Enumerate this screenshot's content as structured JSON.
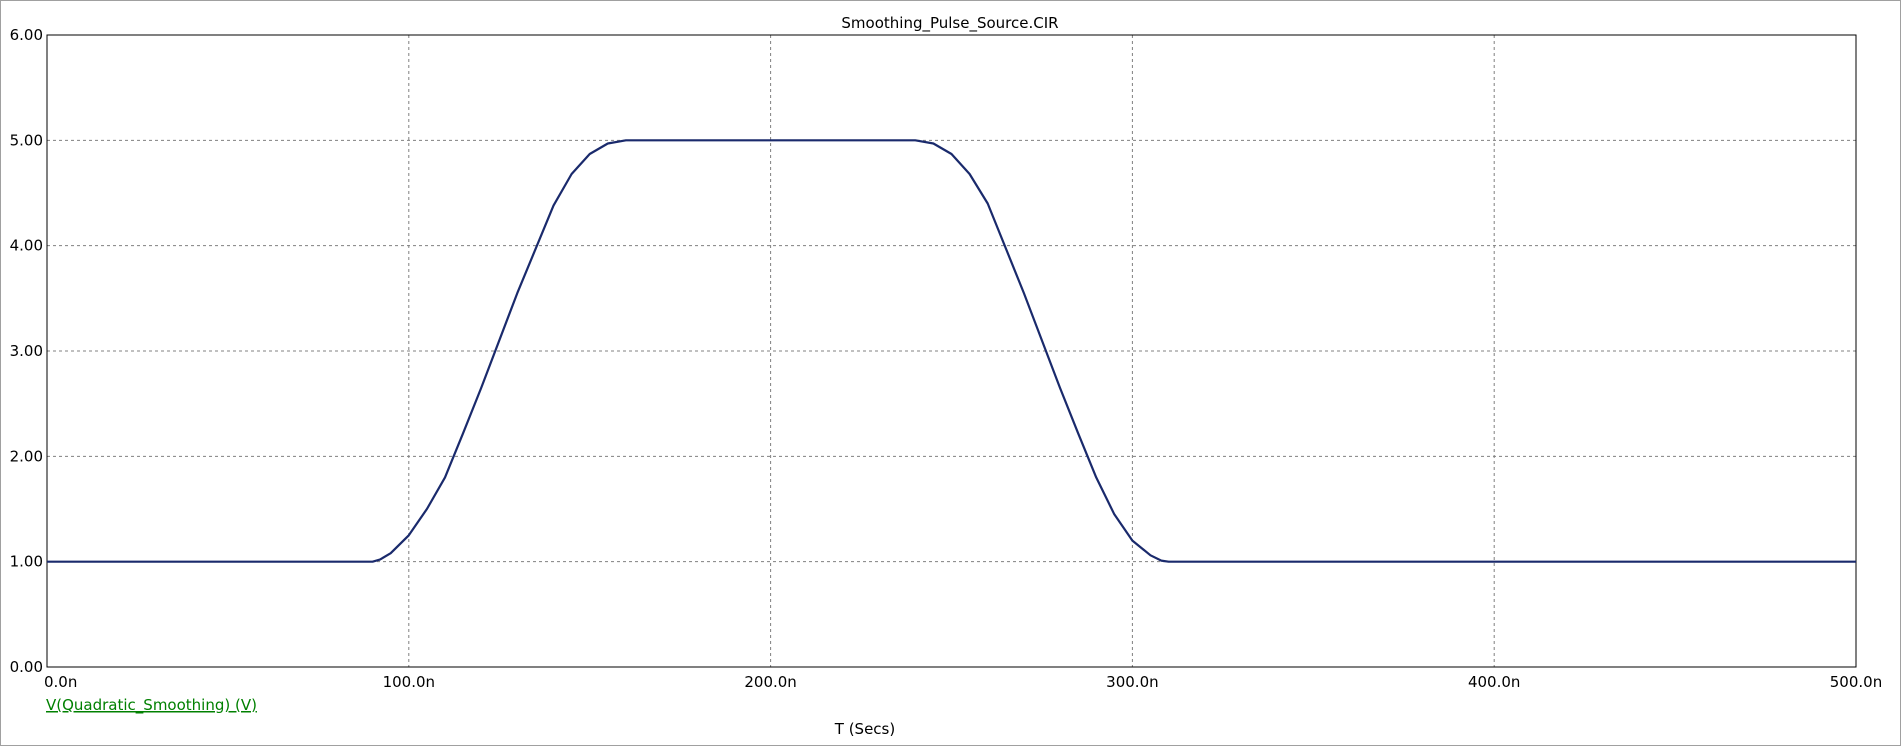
{
  "chart_data": {
    "type": "line",
    "title": "Smoothing_Pulse_Source.CIR",
    "xlabel": "T (Secs)",
    "ylabel": "",
    "xlim": [
      0,
      500
    ],
    "ylim": [
      0,
      6
    ],
    "x_unit": "ns",
    "x_ticks": [
      0,
      100,
      200,
      300,
      400,
      500
    ],
    "x_tick_labels": [
      "0.0n",
      "100.0n",
      "200.0n",
      "300.0n",
      "400.0n",
      "500.0n"
    ],
    "y_ticks": [
      0,
      1,
      2,
      3,
      4,
      5,
      6
    ],
    "y_tick_labels": [
      "0.00",
      "1.00",
      "2.00",
      "3.00",
      "4.00",
      "5.00",
      "6.00"
    ],
    "grid": true,
    "legend_position": "bottom-left",
    "series": [
      {
        "name": "V(Quadratic_Smoothing) (V)",
        "color": "#1a2a6c",
        "legend_color": "#008000",
        "x": [
          0,
          90,
          92,
          95,
          100,
          105,
          110,
          115,
          120,
          130,
          140,
          145,
          150,
          155,
          160,
          200,
          240,
          245,
          250,
          255,
          260,
          270,
          280,
          285,
          290,
          295,
          300,
          305,
          308,
          310,
          500
        ],
        "y": [
          1.0,
          1.0,
          1.02,
          1.08,
          1.25,
          1.5,
          1.8,
          2.22,
          2.65,
          3.55,
          4.38,
          4.68,
          4.87,
          4.97,
          5.0,
          5.0,
          5.0,
          4.97,
          4.87,
          4.68,
          4.4,
          3.55,
          2.65,
          2.22,
          1.8,
          1.45,
          1.2,
          1.06,
          1.01,
          1.0,
          1.0
        ]
      }
    ]
  }
}
